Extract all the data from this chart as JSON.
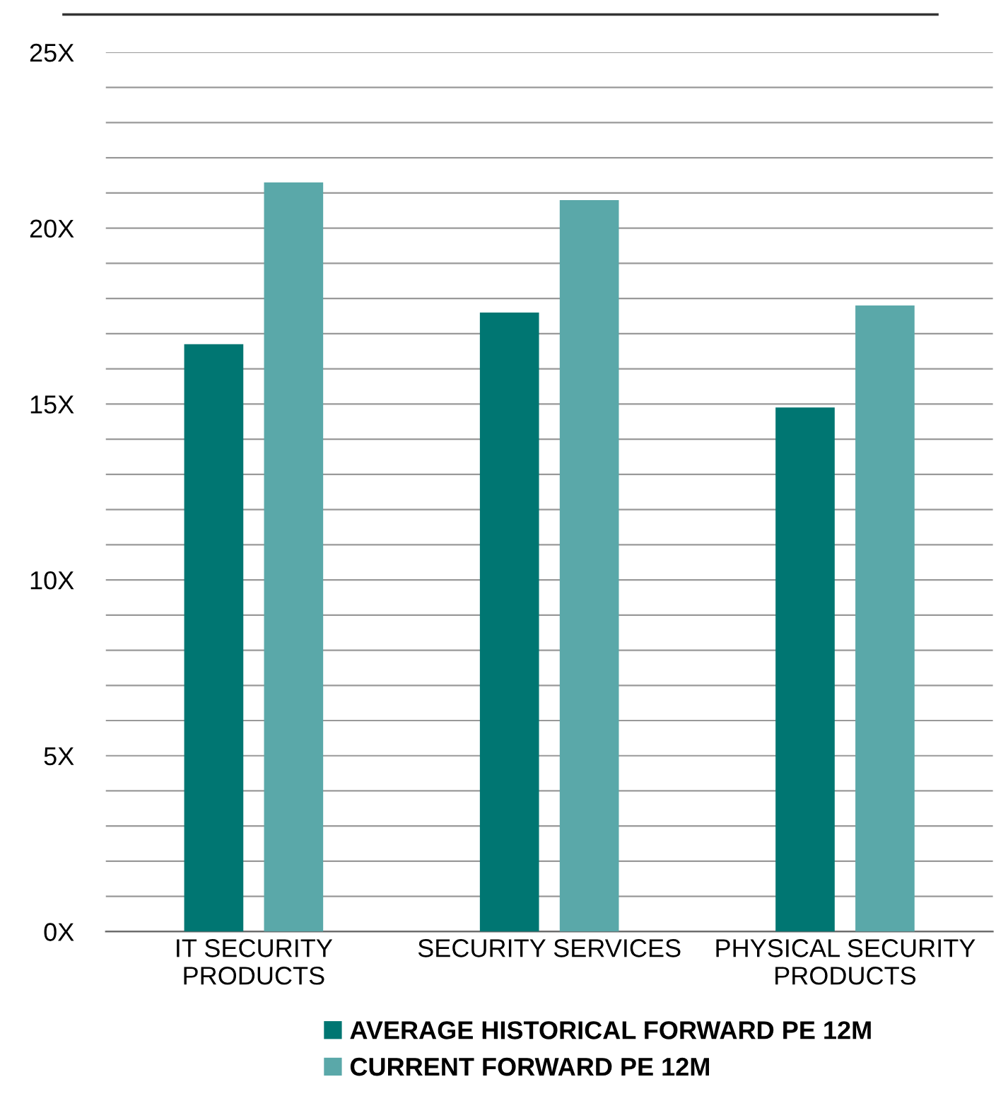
{
  "chart_data": {
    "type": "bar",
    "categories": [
      "IT SECURITY\nPRODUCTS",
      "SECURITY SERVICES",
      "PHYSICAL SECURITY\nPRODUCTS"
    ],
    "series": [
      {
        "name": "AVERAGE HISTORICAL FORWARD PE 12M",
        "color": "#007672",
        "values": [
          16.7,
          17.6,
          14.9
        ]
      },
      {
        "name": "CURRENT FORWARD PE 12M",
        "color": "#5aa8a9",
        "values": [
          21.3,
          20.8,
          17.8
        ]
      }
    ],
    "ylim": [
      0,
      25
    ],
    "yticks": [
      {
        "value": 0,
        "label": "0X"
      },
      {
        "value": 1,
        "label": null
      },
      {
        "value": 2,
        "label": null
      },
      {
        "value": 3,
        "label": null
      },
      {
        "value": 4,
        "label": null
      },
      {
        "value": 5,
        "label": "5X"
      },
      {
        "value": 6,
        "label": null
      },
      {
        "value": 7,
        "label": null
      },
      {
        "value": 8,
        "label": null
      },
      {
        "value": 9,
        "label": null
      },
      {
        "value": 10,
        "label": "10X"
      },
      {
        "value": 11,
        "label": null
      },
      {
        "value": 12,
        "label": null
      },
      {
        "value": 13,
        "label": null
      },
      {
        "value": 14,
        "label": null
      },
      {
        "value": 15,
        "label": "15X"
      },
      {
        "value": 16,
        "label": null
      },
      {
        "value": 17,
        "label": null
      },
      {
        "value": 18,
        "label": null
      },
      {
        "value": 19,
        "label": null
      },
      {
        "value": 20,
        "label": "20X"
      },
      {
        "value": 21,
        "label": null
      },
      {
        "value": 22,
        "label": null
      },
      {
        "value": 23,
        "label": null
      },
      {
        "value": 24,
        "label": null
      },
      {
        "value": 25,
        "label": "25X"
      }
    ],
    "grid": "y",
    "legend": "bottom"
  }
}
